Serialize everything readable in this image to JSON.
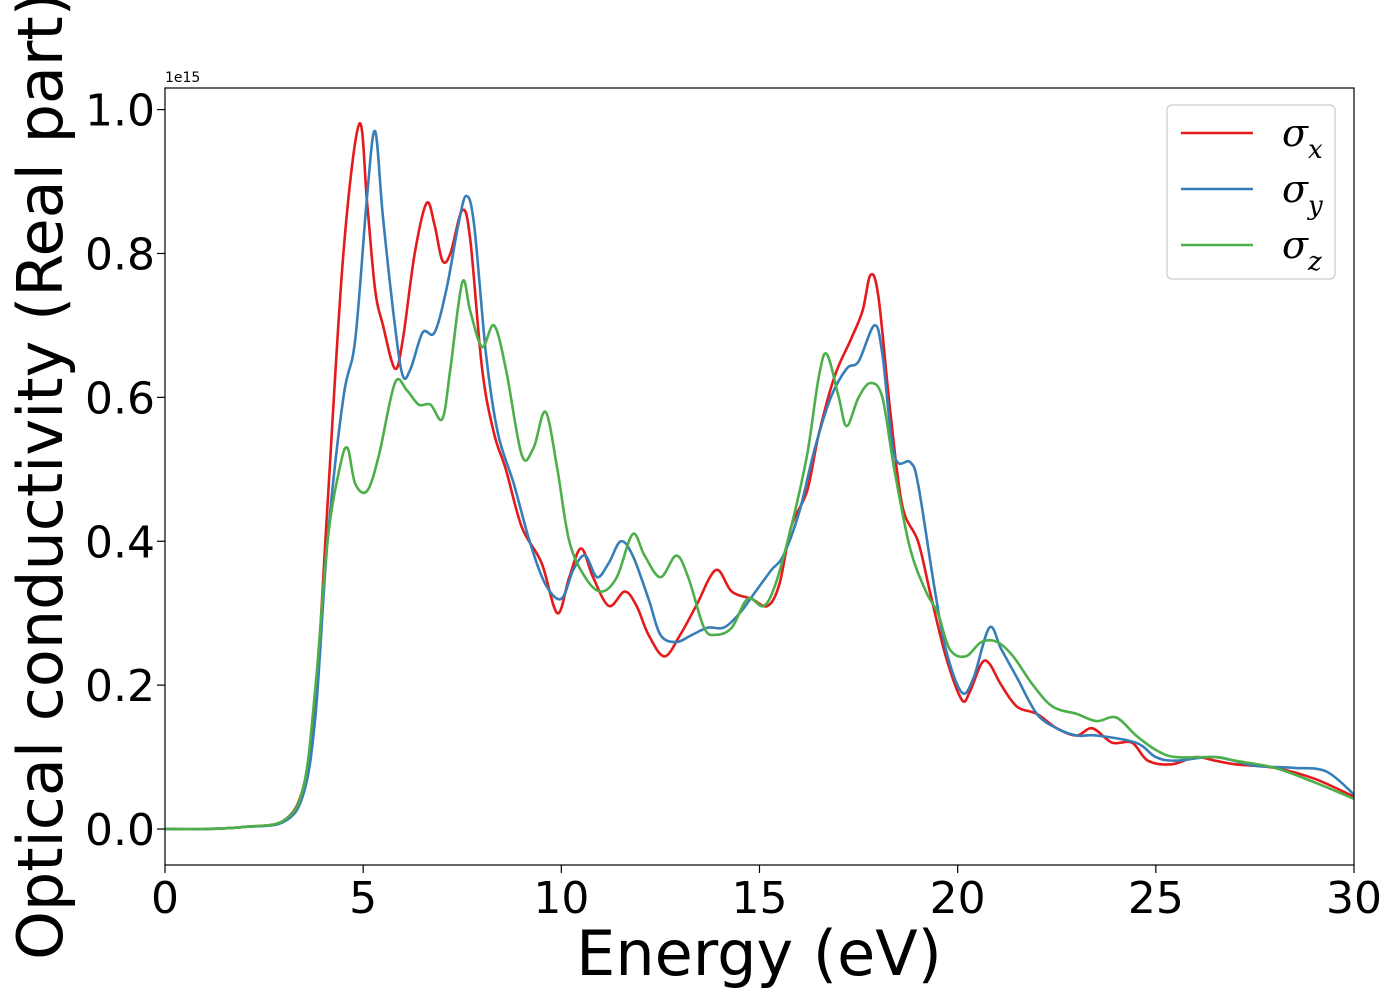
{
  "chart_data": {
    "type": "line",
    "xlabel": "Energy (eV)",
    "ylabel": "Optical conductivity (Real part)",
    "y_offset_label": "1e15",
    "xlim": [
      0,
      30
    ],
    "ylim": [
      -0.05,
      1.03
    ],
    "x_ticks": [
      "0",
      "5",
      "10",
      "15",
      "20",
      "25",
      "30"
    ],
    "y_ticks": [
      "0.0",
      "0.2",
      "0.4",
      "0.6",
      "0.8",
      "1.0"
    ],
    "grid": false,
    "legend_position": "top-right",
    "series": [
      {
        "name": "σx",
        "name_base": "σ",
        "name_sub": "x",
        "color": "#e41a1c",
        "points": [
          [
            0,
            0
          ],
          [
            1,
            0.0
          ],
          [
            2,
            0.003
          ],
          [
            3,
            0.012
          ],
          [
            3.5,
            0.06
          ],
          [
            3.8,
            0.18
          ],
          [
            4.1,
            0.45
          ],
          [
            4.5,
            0.8
          ],
          [
            4.9,
            0.98
          ],
          [
            5.1,
            0.87
          ],
          [
            5.3,
            0.75
          ],
          [
            5.5,
            0.7
          ],
          [
            5.8,
            0.64
          ],
          [
            6.0,
            0.68
          ],
          [
            6.3,
            0.8
          ],
          [
            6.6,
            0.87
          ],
          [
            6.8,
            0.84
          ],
          [
            7.0,
            0.79
          ],
          [
            7.2,
            0.8
          ],
          [
            7.5,
            0.86
          ],
          [
            7.7,
            0.82
          ],
          [
            8.0,
            0.64
          ],
          [
            8.3,
            0.55
          ],
          [
            8.6,
            0.5
          ],
          [
            9.0,
            0.42
          ],
          [
            9.5,
            0.37
          ],
          [
            9.9,
            0.3
          ],
          [
            10.2,
            0.35
          ],
          [
            10.5,
            0.39
          ],
          [
            10.8,
            0.35
          ],
          [
            11.2,
            0.31
          ],
          [
            11.6,
            0.33
          ],
          [
            11.9,
            0.31
          ],
          [
            12.2,
            0.27
          ],
          [
            12.6,
            0.24
          ],
          [
            13.0,
            0.27
          ],
          [
            13.4,
            0.31
          ],
          [
            13.9,
            0.36
          ],
          [
            14.3,
            0.33
          ],
          [
            14.8,
            0.32
          ],
          [
            15.2,
            0.31
          ],
          [
            15.5,
            0.34
          ],
          [
            15.8,
            0.42
          ],
          [
            16.2,
            0.47
          ],
          [
            16.5,
            0.55
          ],
          [
            16.9,
            0.63
          ],
          [
            17.3,
            0.68
          ],
          [
            17.6,
            0.72
          ],
          [
            17.8,
            0.77
          ],
          [
            18.0,
            0.74
          ],
          [
            18.3,
            0.58
          ],
          [
            18.6,
            0.45
          ],
          [
            19.0,
            0.4
          ],
          [
            19.3,
            0.33
          ],
          [
            19.7,
            0.24
          ],
          [
            20.1,
            0.18
          ],
          [
            20.3,
            0.19
          ],
          [
            20.6,
            0.23
          ],
          [
            20.8,
            0.23
          ],
          [
            21.1,
            0.2
          ],
          [
            21.5,
            0.17
          ],
          [
            22.0,
            0.16
          ],
          [
            22.5,
            0.14
          ],
          [
            23.0,
            0.13
          ],
          [
            23.4,
            0.14
          ],
          [
            23.9,
            0.12
          ],
          [
            24.4,
            0.12
          ],
          [
            24.8,
            0.095
          ],
          [
            25.4,
            0.09
          ],
          [
            26.0,
            0.1
          ],
          [
            26.5,
            0.095
          ],
          [
            27.0,
            0.09
          ],
          [
            28.0,
            0.085
          ],
          [
            29.0,
            0.07
          ],
          [
            30,
            0.045
          ]
        ]
      },
      {
        "name": "σy",
        "name_base": "σ",
        "name_sub": "y",
        "color": "#377eb8",
        "points": [
          [
            0,
            0
          ],
          [
            1,
            0.0
          ],
          [
            2,
            0.003
          ],
          [
            3,
            0.01
          ],
          [
            3.5,
            0.05
          ],
          [
            3.8,
            0.16
          ],
          [
            4.1,
            0.4
          ],
          [
            4.5,
            0.6
          ],
          [
            4.8,
            0.68
          ],
          [
            5.1,
            0.88
          ],
          [
            5.3,
            0.97
          ],
          [
            5.5,
            0.85
          ],
          [
            5.8,
            0.7
          ],
          [
            6.0,
            0.63
          ],
          [
            6.2,
            0.64
          ],
          [
            6.5,
            0.69
          ],
          [
            6.8,
            0.69
          ],
          [
            7.1,
            0.75
          ],
          [
            7.4,
            0.84
          ],
          [
            7.6,
            0.88
          ],
          [
            7.8,
            0.84
          ],
          [
            8.1,
            0.66
          ],
          [
            8.4,
            0.55
          ],
          [
            8.8,
            0.48
          ],
          [
            9.2,
            0.4
          ],
          [
            9.6,
            0.34
          ],
          [
            10.0,
            0.32
          ],
          [
            10.3,
            0.36
          ],
          [
            10.6,
            0.38
          ],
          [
            10.9,
            0.35
          ],
          [
            11.2,
            0.37
          ],
          [
            11.5,
            0.4
          ],
          [
            11.8,
            0.38
          ],
          [
            12.2,
            0.32
          ],
          [
            12.5,
            0.27
          ],
          [
            12.9,
            0.26
          ],
          [
            13.3,
            0.27
          ],
          [
            13.7,
            0.28
          ],
          [
            14.1,
            0.28
          ],
          [
            14.5,
            0.3
          ],
          [
            14.9,
            0.33
          ],
          [
            15.3,
            0.36
          ],
          [
            15.6,
            0.38
          ],
          [
            16.0,
            0.44
          ],
          [
            16.4,
            0.53
          ],
          [
            16.8,
            0.6
          ],
          [
            17.2,
            0.64
          ],
          [
            17.5,
            0.65
          ],
          [
            17.9,
            0.7
          ],
          [
            18.1,
            0.66
          ],
          [
            18.4,
            0.52
          ],
          [
            18.8,
            0.51
          ],
          [
            19.0,
            0.48
          ],
          [
            19.4,
            0.34
          ],
          [
            19.7,
            0.25
          ],
          [
            20.1,
            0.19
          ],
          [
            20.4,
            0.21
          ],
          [
            20.8,
            0.28
          ],
          [
            21.1,
            0.25
          ],
          [
            21.5,
            0.21
          ],
          [
            22.0,
            0.16
          ],
          [
            22.5,
            0.14
          ],
          [
            23.0,
            0.13
          ],
          [
            23.5,
            0.13
          ],
          [
            24.5,
            0.12
          ],
          [
            25.0,
            0.1
          ],
          [
            25.5,
            0.095
          ],
          [
            26.5,
            0.1
          ],
          [
            27.5,
            0.088
          ],
          [
            28.5,
            0.085
          ],
          [
            29.3,
            0.08
          ],
          [
            30,
            0.048
          ]
        ]
      },
      {
        "name": "σz",
        "name_base": "σ",
        "name_sub": "z",
        "color": "#4daf4a",
        "points": [
          [
            0,
            0
          ],
          [
            1,
            0.0
          ],
          [
            2,
            0.003
          ],
          [
            3,
            0.012
          ],
          [
            3.5,
            0.06
          ],
          [
            3.8,
            0.2
          ],
          [
            4.1,
            0.4
          ],
          [
            4.4,
            0.5
          ],
          [
            4.6,
            0.53
          ],
          [
            4.8,
            0.48
          ],
          [
            5.1,
            0.47
          ],
          [
            5.4,
            0.52
          ],
          [
            5.8,
            0.62
          ],
          [
            6.1,
            0.61
          ],
          [
            6.4,
            0.59
          ],
          [
            6.7,
            0.59
          ],
          [
            7.0,
            0.57
          ],
          [
            7.2,
            0.64
          ],
          [
            7.5,
            0.76
          ],
          [
            7.7,
            0.72
          ],
          [
            8.0,
            0.67
          ],
          [
            8.3,
            0.7
          ],
          [
            8.6,
            0.64
          ],
          [
            9.0,
            0.52
          ],
          [
            9.3,
            0.53
          ],
          [
            9.6,
            0.58
          ],
          [
            9.9,
            0.5
          ],
          [
            10.2,
            0.4
          ],
          [
            10.6,
            0.35
          ],
          [
            11.0,
            0.33
          ],
          [
            11.4,
            0.35
          ],
          [
            11.8,
            0.41
          ],
          [
            12.1,
            0.38
          ],
          [
            12.5,
            0.35
          ],
          [
            12.9,
            0.38
          ],
          [
            13.2,
            0.35
          ],
          [
            13.6,
            0.28
          ],
          [
            13.9,
            0.27
          ],
          [
            14.3,
            0.28
          ],
          [
            14.7,
            0.32
          ],
          [
            15.1,
            0.31
          ],
          [
            15.4,
            0.34
          ],
          [
            15.8,
            0.42
          ],
          [
            16.2,
            0.52
          ],
          [
            16.5,
            0.63
          ],
          [
            16.7,
            0.66
          ],
          [
            17.0,
            0.6
          ],
          [
            17.2,
            0.56
          ],
          [
            17.5,
            0.6
          ],
          [
            17.8,
            0.62
          ],
          [
            18.1,
            0.6
          ],
          [
            18.4,
            0.5
          ],
          [
            18.8,
            0.39
          ],
          [
            19.2,
            0.33
          ],
          [
            19.5,
            0.3
          ],
          [
            19.8,
            0.25
          ],
          [
            20.2,
            0.24
          ],
          [
            20.6,
            0.26
          ],
          [
            21.0,
            0.26
          ],
          [
            21.4,
            0.24
          ],
          [
            21.9,
            0.2
          ],
          [
            22.4,
            0.17
          ],
          [
            23.0,
            0.16
          ],
          [
            23.5,
            0.15
          ],
          [
            24.0,
            0.155
          ],
          [
            24.5,
            0.13
          ],
          [
            25.0,
            0.11
          ],
          [
            25.5,
            0.1
          ],
          [
            26.5,
            0.1
          ],
          [
            27.0,
            0.095
          ],
          [
            28.0,
            0.085
          ],
          [
            29.0,
            0.065
          ],
          [
            30,
            0.042
          ]
        ]
      }
    ]
  }
}
